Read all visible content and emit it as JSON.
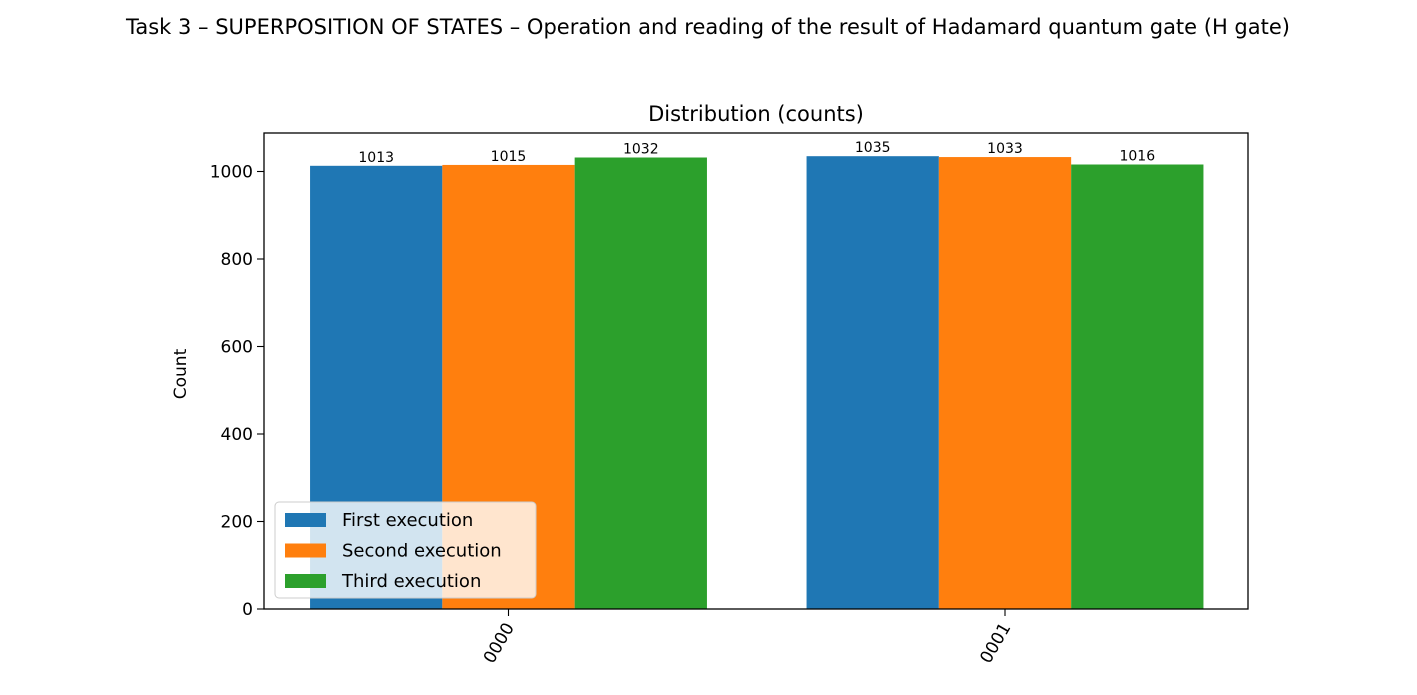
{
  "figure_title": "Task 3 – SUPERPOSITION OF STATES – Operation and reading of the result of Hadamard quantum gate (H gate)",
  "chart_data": {
    "type": "bar",
    "title": "Distribution (counts)",
    "xlabel": "",
    "ylabel": "Count",
    "categories": [
      "0000",
      "0001"
    ],
    "series": [
      {
        "name": "First execution",
        "values": [
          1013,
          1035
        ],
        "color": "#1f77b4"
      },
      {
        "name": "Second execution",
        "values": [
          1015,
          1033
        ],
        "color": "#ff7f0e"
      },
      {
        "name": "Third execution",
        "values": [
          1032,
          1016
        ],
        "color": "#2ca02c"
      }
    ],
    "ylim": [
      0,
      1088
    ],
    "yticks": [
      0,
      200,
      400,
      600,
      800,
      1000
    ],
    "xtick_rotation": 60,
    "bar_labels": true,
    "grid": false,
    "legend_position": "lower-left"
  }
}
